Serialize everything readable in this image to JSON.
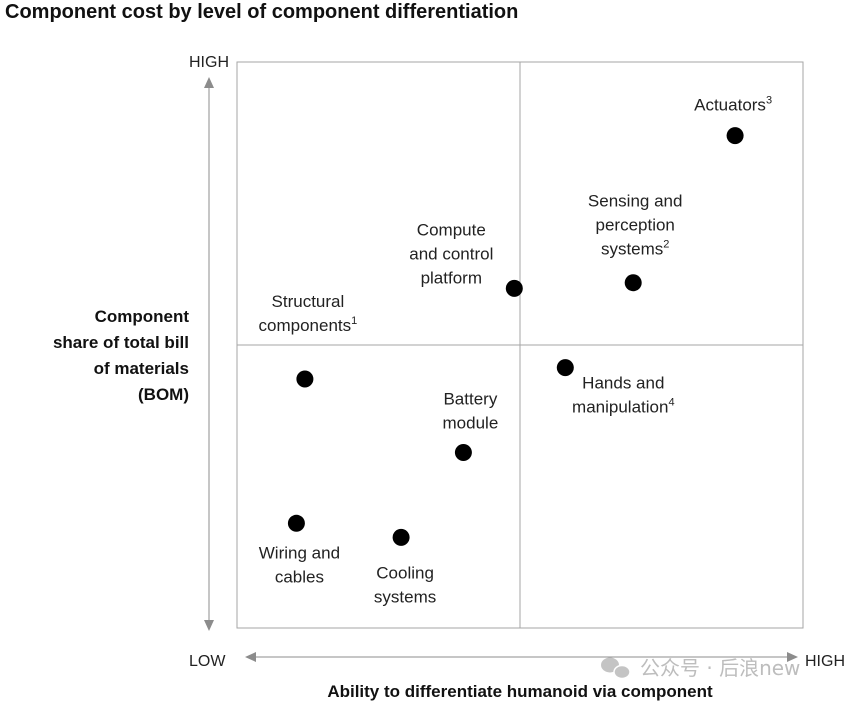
{
  "chart_data": {
    "type": "scatter",
    "title": "Component cost by level of component differentiation",
    "xlabel": "Ability to differentiate humanoid via component",
    "ylabel_lines": [
      "Component",
      "share of total bill",
      "of materials",
      "(BOM)"
    ],
    "x_ticks": {
      "low": "LOW",
      "high": "HIGH"
    },
    "y_ticks": {
      "low": "LOW",
      "high": "HIGH"
    },
    "xlim": [
      0,
      1
    ],
    "ylim": [
      0,
      1
    ],
    "quadrant_dividers": {
      "x": 0.5,
      "y": 0.5
    },
    "points": [
      {
        "label_lines": [
          "Actuators"
        ],
        "sup": "3",
        "x": 0.88,
        "y": 0.87
      },
      {
        "label_lines": [
          "Sensing and",
          "perception",
          "systems"
        ],
        "sup": "2",
        "x": 0.7,
        "y": 0.61
      },
      {
        "label_lines": [
          "Compute",
          "and control",
          "platform"
        ],
        "sup": "",
        "x": 0.49,
        "y": 0.6
      },
      {
        "label_lines": [
          "Structural",
          "components"
        ],
        "sup": "1",
        "x": 0.12,
        "y": 0.44
      },
      {
        "label_lines": [
          "Hands and",
          "manipulation"
        ],
        "sup": "4",
        "x": 0.58,
        "y": 0.46
      },
      {
        "label_lines": [
          "Battery",
          "module"
        ],
        "sup": "",
        "x": 0.4,
        "y": 0.31
      },
      {
        "label_lines": [
          "Wiring and",
          "cables"
        ],
        "sup": "",
        "x": 0.105,
        "y": 0.185
      },
      {
        "label_lines": [
          "Cooling",
          "systems"
        ],
        "sup": "",
        "x": 0.29,
        "y": 0.16
      }
    ]
  },
  "watermark": "公众号 · 后浪new",
  "colors": {
    "marker": "#000000",
    "frame": "#a6a6a6",
    "arrow": "#8c8c8c",
    "text": "#111111"
  }
}
